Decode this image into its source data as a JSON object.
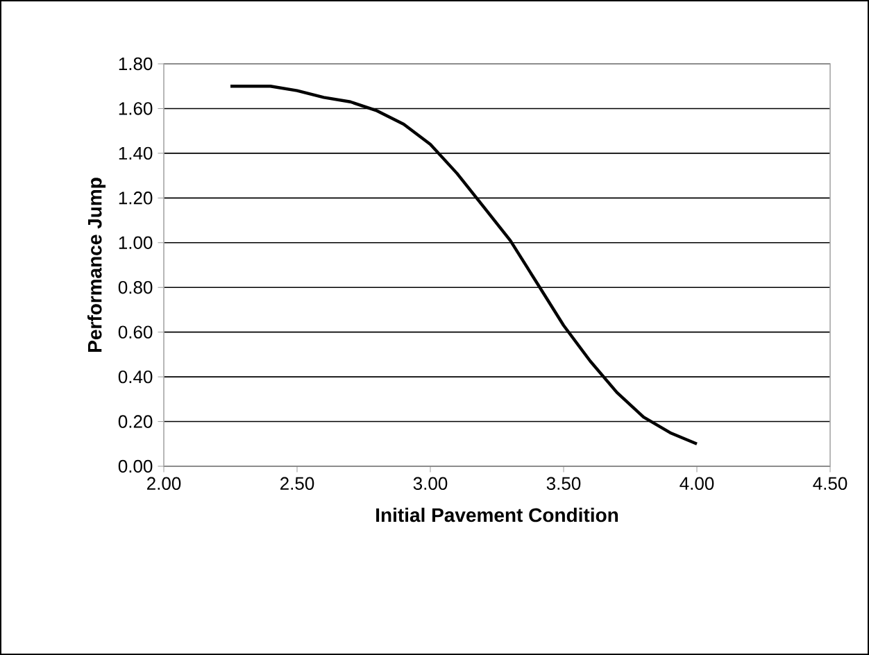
{
  "chart_data": {
    "type": "line",
    "xlabel": "Initial Pavement Condition",
    "ylabel": "Performance Jump",
    "x": [
      2.25,
      2.4,
      2.5,
      2.6,
      2.7,
      2.8,
      2.9,
      3.0,
      3.1,
      3.2,
      3.3,
      3.4,
      3.5,
      3.6,
      3.7,
      3.8,
      3.9,
      4.0
    ],
    "series": [
      {
        "color": "#000000",
        "values": [
          1.7,
          1.7,
          1.68,
          1.65,
          1.63,
          1.59,
          1.53,
          1.44,
          1.31,
          1.16,
          1.01,
          0.82,
          0.63,
          0.47,
          0.33,
          0.22,
          0.15,
          0.1
        ]
      }
    ],
    "xlim": [
      2.0,
      4.5
    ],
    "xticks": [
      {
        "value": 2.0,
        "label": "2.00"
      },
      {
        "value": 2.5,
        "label": "2.50"
      },
      {
        "value": 3.0,
        "label": "3.00"
      },
      {
        "value": 3.5,
        "label": "3.50"
      },
      {
        "value": 4.0,
        "label": "4.00"
      },
      {
        "value": 4.5,
        "label": "4.50"
      }
    ],
    "ylim": [
      0,
      1.8
    ],
    "yticks": [
      {
        "value": 0,
        "label": "0.00"
      },
      {
        "value": 0.2,
        "label": "0.20"
      },
      {
        "value": 0.4,
        "label": "0.40"
      },
      {
        "value": 0.6,
        "label": "0.60"
      },
      {
        "value": 0.8,
        "label": "0.80"
      },
      {
        "value": 1.0,
        "label": "1.00"
      },
      {
        "value": 1.2,
        "label": "1.20"
      },
      {
        "value": 1.4,
        "label": "1.40"
      },
      {
        "value": 1.6,
        "label": "1.60"
      },
      {
        "value": 1.8,
        "label": "1.80"
      }
    ],
    "grid": "y",
    "marker": "none",
    "line_style": "solid"
  }
}
